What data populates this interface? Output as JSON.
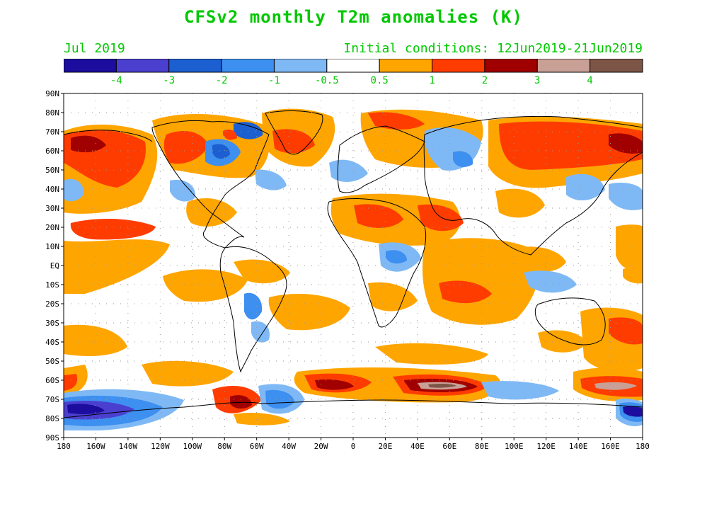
{
  "title": "CFSv2 monthly T2m anomalies (K)",
  "forecast_month": "Jul 2019",
  "initial_conditions": "Initial conditions: 12Jun2019-21Jun2019",
  "colorbar": {
    "colors": [
      "#1c0d9e",
      "#4b3fd0",
      "#1c5fd0",
      "#3d8ff0",
      "#7fb9f5",
      "#ffffff",
      "#ffa500",
      "#ff3c00",
      "#a00000",
      "#c8a096",
      "#7d5546"
    ],
    "labels": [
      "-4",
      "-3",
      "-2",
      "-1",
      "-0.5",
      "0.5",
      "1",
      "2",
      "3",
      "4"
    ],
    "label_color": "#00c800"
  },
  "map": {
    "lat_labels": [
      "90N",
      "80N",
      "70N",
      "60N",
      "50N",
      "40N",
      "30N",
      "20N",
      "10N",
      "EQ",
      "10S",
      "20S",
      "30S",
      "40S",
      "50S",
      "60S",
      "70S",
      "80S",
      "90S"
    ],
    "lon_labels": [
      "180",
      "160W",
      "140W",
      "120W",
      "100W",
      "80W",
      "60W",
      "40W",
      "20W",
      "0",
      "20E",
      "40E",
      "60E",
      "80E",
      "100E",
      "120E",
      "140E",
      "160E",
      "180"
    ],
    "lat_range": [
      -90,
      90
    ],
    "lon_range": [
      -180,
      180
    ],
    "grid": "dotted",
    "anomaly_regions": [
      {
        "level": "1",
        "color": "#ffa500",
        "description": "warm anomaly over North Pacific and western Canada"
      },
      {
        "level": "2",
        "color": "#ff3c00",
        "description": "strong warm anomaly over Alaska and NE Siberia"
      },
      {
        "level": "-1",
        "color": "#3d8ff0",
        "description": "cool anomaly over Hudson Bay and eastern Europe"
      },
      {
        "level": "3",
        "color": "#a00000",
        "description": "very warm anomalies in Southern Ocean near 60S"
      }
    ]
  }
}
